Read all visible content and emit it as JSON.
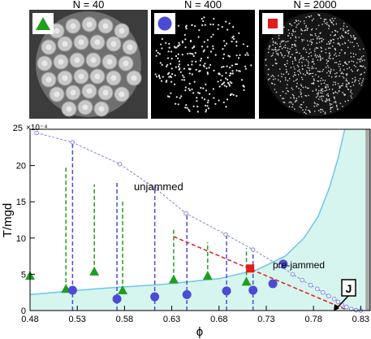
{
  "panels": [
    {
      "label": "N = 40",
      "marker": "triangle",
      "marker_color": "#1f9e1f"
    },
    {
      "label": "N = 400",
      "marker": "circle",
      "marker_color": "#4b4bd6"
    },
    {
      "label": "N = 2000",
      "marker": "square",
      "marker_color": "#e21b1b"
    }
  ],
  "chart_data": {
    "type": "scatter",
    "xlabel": "ϕ",
    "ylabel": "T/mgd",
    "y_multiplier": "×10⁻⁴",
    "xlim": [
      0.48,
      0.84
    ],
    "ylim": [
      0,
      25
    ],
    "x_ticks": [
      "0.48",
      "0.53",
      "0.58",
      "0.63",
      "0.68",
      "0.73",
      "0.78",
      "0.83"
    ],
    "y_ticks": [
      "0",
      "5",
      "10",
      "15",
      "20",
      "25"
    ],
    "region_labels": {
      "unjammed": "unjammed",
      "pre_jammed": "pre-jammed",
      "jammed": "J"
    },
    "colors": {
      "prejammed_fill": "#d6f5ee",
      "boundary": "#6ec6e8",
      "jammed_fill": "#a6a9a6",
      "triangle": "#1f9e1f",
      "circle": "#4b4bd6",
      "square": "#e21b1b",
      "open_circle": "#7b7be0"
    },
    "series": [
      {
        "marker": "triangle",
        "points": [
          [
            0.48,
            4.8
          ],
          [
            0.518,
            3.0
          ],
          [
            0.548,
            5.4
          ],
          [
            0.578,
            2.8
          ],
          [
            0.632,
            4.3
          ],
          [
            0.668,
            4.8
          ],
          [
            0.709,
            4.0
          ]
        ]
      },
      {
        "marker": "circle",
        "points": [
          [
            0.525,
            2.8
          ],
          [
            0.572,
            1.6
          ],
          [
            0.612,
            1.9
          ],
          [
            0.646,
            2.2
          ],
          [
            0.688,
            2.7
          ],
          [
            0.716,
            2.8
          ],
          [
            0.737,
            3.7
          ],
          [
            0.748,
            6.4
          ]
        ]
      },
      {
        "marker": "square",
        "points": [
          [
            0.713,
            5.8
          ]
        ]
      },
      {
        "marker": "open-circle",
        "points": [
          [
            0.487,
            24.5
          ],
          [
            0.525,
            23.2
          ],
          [
            0.575,
            20.2
          ],
          [
            0.613,
            16.8
          ],
          [
            0.645,
            13.4
          ],
          [
            0.687,
            10.5
          ],
          [
            0.716,
            8.4
          ],
          [
            0.744,
            6.2
          ],
          [
            0.758,
            5.0
          ],
          [
            0.768,
            4.2
          ],
          [
            0.777,
            3.5
          ],
          [
            0.784,
            3.0
          ],
          [
            0.79,
            2.5
          ],
          [
            0.796,
            2.0
          ],
          [
            0.802,
            1.6
          ],
          [
            0.806,
            1.2
          ],
          [
            0.81,
            0.8
          ],
          [
            0.815,
            0.5
          ],
          [
            0.82,
            0.2
          ],
          [
            0.825,
            0.05
          ],
          [
            0.83,
            0
          ]
        ]
      }
    ],
    "error_bars": [
      {
        "color": "triangle",
        "x": 0.518,
        "y_low": 3.0,
        "y_high": 19.8
      },
      {
        "color": "triangle",
        "x": 0.548,
        "y_low": 5.4,
        "y_high": 17.4
      },
      {
        "color": "triangle",
        "x": 0.578,
        "y_low": 2.8,
        "y_high": 15.3
      },
      {
        "color": "triangle",
        "x": 0.632,
        "y_low": 4.3,
        "y_high": 11.2
      },
      {
        "color": "triangle",
        "x": 0.668,
        "y_low": 4.8,
        "y_high": 9.4
      },
      {
        "color": "triangle",
        "x": 0.709,
        "y_low": 4.0,
        "y_high": 8.6
      },
      {
        "color": "circle",
        "x": 0.525,
        "y_low": 0,
        "y_high": 23.2
      },
      {
        "color": "circle",
        "x": 0.572,
        "y_low": 0,
        "y_high": 17.8
      },
      {
        "color": "circle",
        "x": 0.612,
        "y_low": 0,
        "y_high": 16.8
      },
      {
        "color": "circle",
        "x": 0.646,
        "y_low": 0,
        "y_high": 13.4
      },
      {
        "color": "circle",
        "x": 0.688,
        "y_low": 0,
        "y_high": 10.5
      },
      {
        "color": "circle",
        "x": 0.716,
        "y_low": 0,
        "y_high": 8.4
      }
    ],
    "red_dashed_line": [
      [
        0.632,
        10.2
      ],
      [
        0.815,
        0.1
      ]
    ],
    "boundary_curve": [
      [
        0.48,
        2.2
      ],
      [
        0.55,
        3.0
      ],
      [
        0.62,
        3.6
      ],
      [
        0.68,
        4.4
      ],
      [
        0.72,
        5.6
      ],
      [
        0.75,
        7.5
      ],
      [
        0.77,
        10
      ],
      [
        0.785,
        13
      ],
      [
        0.797,
        17
      ],
      [
        0.806,
        21
      ],
      [
        0.813,
        25
      ]
    ],
    "jammed_region_x": [
      0.835,
      0.84
    ]
  }
}
